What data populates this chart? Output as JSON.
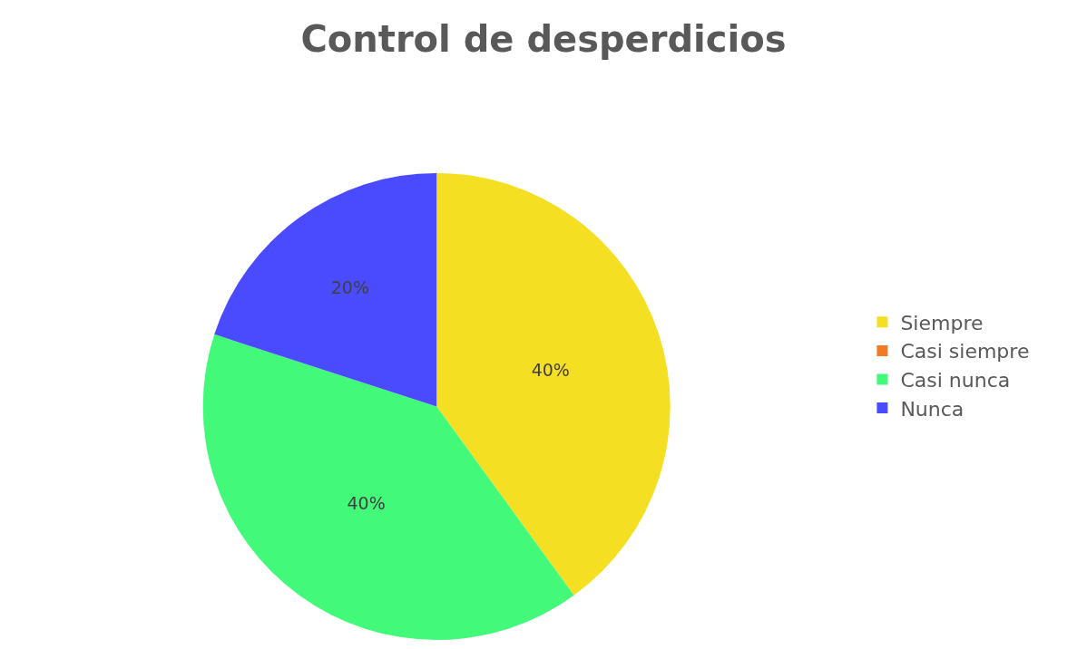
{
  "chart_data": {
    "type": "pie",
    "title": "Control de desperdicios",
    "categories": [
      "Siempre",
      "Casi siempre",
      "Casi nunca",
      "Nunca"
    ],
    "values": [
      40,
      0,
      40,
      20
    ],
    "colors": [
      "#f4df22",
      "#f07a26",
      "#42f97a",
      "#4a4aff"
    ],
    "value_labels": [
      "40%",
      null,
      "40%",
      "20%"
    ],
    "legend": "right"
  }
}
